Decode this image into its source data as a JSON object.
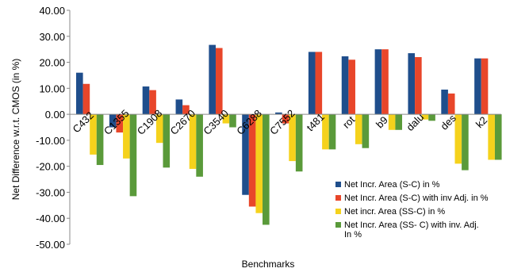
{
  "chart_data": {
    "type": "bar",
    "xlabel": "Benchmarks",
    "ylabel": "Net Difference w.r.t. CMOS (in %)",
    "ylim": [
      -50,
      40
    ],
    "yticks": [
      "40.00",
      "30.00",
      "20.00",
      "10.00",
      "0.00",
      "-10.00",
      "-20.00",
      "-30.00",
      "-40.00",
      "-50.00"
    ],
    "grid": false,
    "legend_position": "bottom-right",
    "categories": [
      "C432",
      "C1355",
      "C1908",
      "C2670",
      "C3540",
      "C6288",
      "C7552",
      "t481",
      "rot",
      "b9",
      "dalu",
      "des",
      "k2"
    ],
    "series": [
      {
        "name": "Net Incr. Area (S-C) in %",
        "color": "#1f4e8c",
        "values": [
          16,
          -5,
          10.7,
          5.7,
          26.7,
          -31,
          0.7,
          24,
          22.3,
          25,
          23.5,
          9.5,
          21.5
        ]
      },
      {
        "name": "Net Incr. Area (S-C) with inv Adj. in %",
        "color": "#e8462a",
        "values": [
          11.7,
          -7,
          9.3,
          3.5,
          25.5,
          -35.5,
          -3.5,
          24,
          21,
          25,
          22,
          8,
          21.5
        ]
      },
      {
        "name": "Net incr. Area (SS-C) in %",
        "color": "#f5d21c",
        "values": [
          -15.5,
          -17,
          -11,
          -21,
          -3.5,
          -38,
          -18,
          -13.5,
          -11.5,
          -6,
          -2,
          -19,
          -17.5
        ]
      },
      {
        "name": "Net Incr. Area (SS- C) with inv. Adj. In %",
        "color": "#5a9a3a",
        "values": [
          -19.5,
          -31.5,
          -20.5,
          -24,
          -5,
          -42.5,
          -22,
          -13.5,
          -13,
          -6,
          -2.5,
          -21.5,
          -17.5
        ]
      }
    ]
  }
}
